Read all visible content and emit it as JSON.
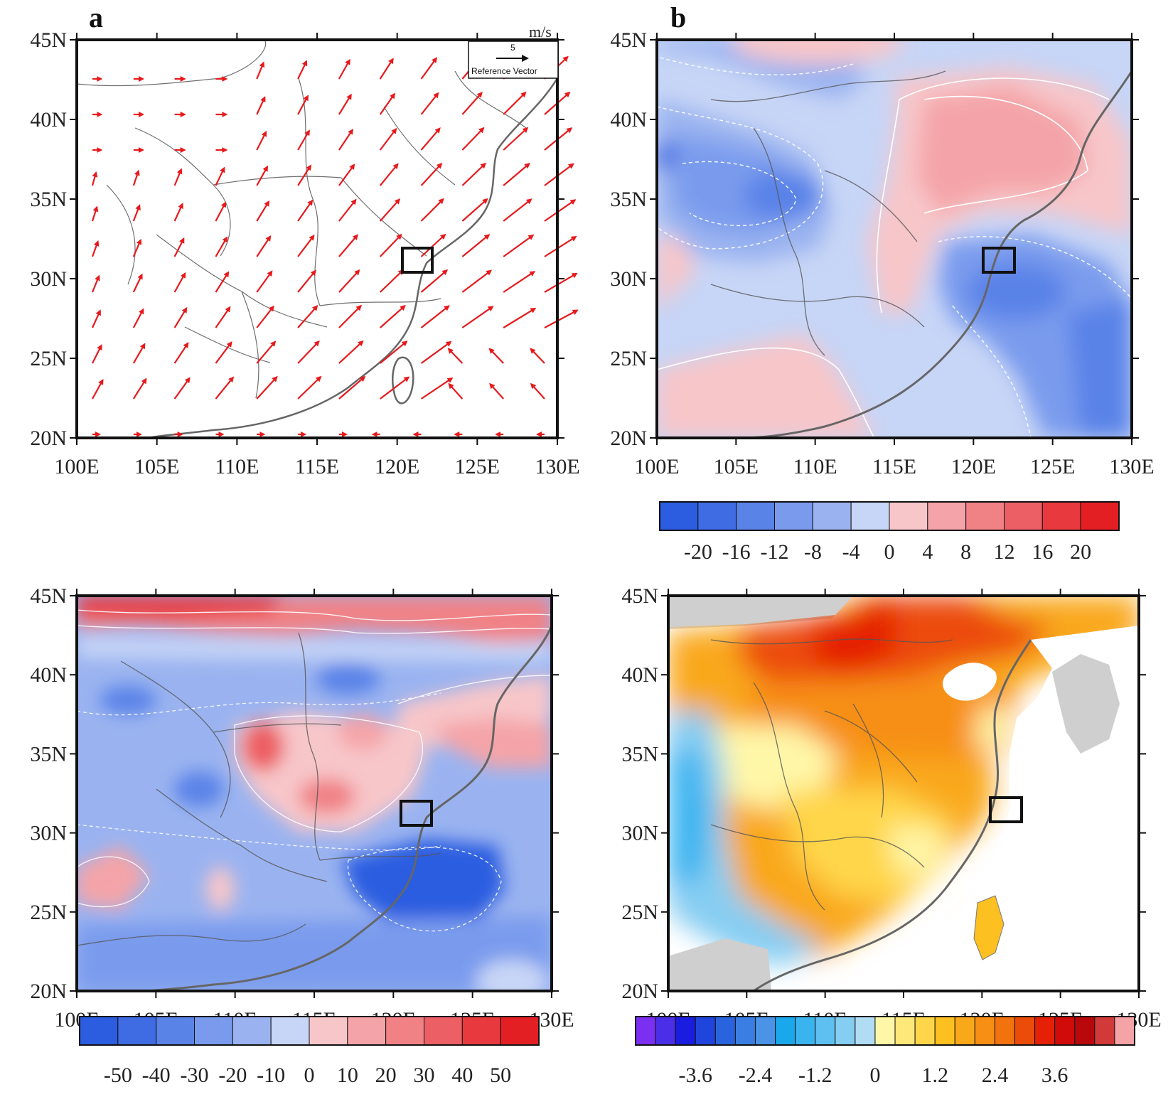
{
  "panels": [
    {
      "label": "a",
      "kind": "vector",
      "units": "m/s",
      "reference_vector": {
        "magnitude": "5",
        "label": "Reference Vector"
      },
      "lat_ticks": [
        "45N",
        "40N",
        "35N",
        "30N",
        "25N",
        "20N"
      ],
      "lon_ticks": [
        "100E",
        "105E",
        "110E",
        "115E",
        "120E",
        "125E",
        "130E"
      ],
      "colors": {
        "vector": "#e8191c"
      }
    },
    {
      "label": "b",
      "kind": "filled-contour",
      "lat_ticks": [
        "45N",
        "40N",
        "35N",
        "30N",
        "25N",
        "20N"
      ],
      "lon_ticks": [
        "100E",
        "105E",
        "110E",
        "115E",
        "120E",
        "125E",
        "130E"
      ],
      "colorbar": {
        "labels": [
          "-20",
          "-16",
          "-12",
          "-8",
          "-4",
          "0",
          "4",
          "8",
          "12",
          "16",
          "20"
        ],
        "colors": [
          "#2c5de0",
          "#3f6be3",
          "#5a83e8",
          "#7a9bed",
          "#9ab3f0",
          "#c7d5f6",
          "#f7c6c9",
          "#f4a4a8",
          "#f08286",
          "#ec5f64",
          "#e8393e",
          "#e41f24"
        ]
      }
    },
    {
      "label": "",
      "kind": "filled-contour",
      "lat_ticks": [
        "45N",
        "40N",
        "35N",
        "30N",
        "25N",
        "20N"
      ],
      "lon_ticks": [
        "100E",
        "105E",
        "110E",
        "115E",
        "120E",
        "125E",
        "130E"
      ],
      "colorbar": {
        "labels": [
          "-50",
          "-40",
          "-30",
          "-20",
          "-10",
          "0",
          "10",
          "20",
          "30",
          "40",
          "50"
        ],
        "colors": [
          "#2c5de0",
          "#3f6be3",
          "#5a83e8",
          "#7a9bed",
          "#9ab3f0",
          "#c7d5f6",
          "#f7c6c9",
          "#f4a4a8",
          "#f08286",
          "#ec5f64",
          "#e8393e",
          "#e41f24"
        ]
      }
    },
    {
      "label": "",
      "kind": "filled-contour",
      "lat_ticks": [
        "45N",
        "40N",
        "35N",
        "30N",
        "25N",
        "20N"
      ],
      "lon_ticks": [
        "100E",
        "105E",
        "110E",
        "115E",
        "120E",
        "125E",
        "130E"
      ],
      "colorbar": {
        "labels": [
          "-3.6",
          "-2.4",
          "-1.2",
          "0",
          "1.2",
          "2.4",
          "3.6"
        ],
        "colors": [
          "#7b2ff0",
          "#4b2fe8",
          "#1a1de0",
          "#1f45dc",
          "#2a63de",
          "#3a7ee2",
          "#4a93e6",
          "#1aa8ec",
          "#3ab4ef",
          "#5ec0f0",
          "#86cdf2",
          "#b0dcf4",
          "#fff7a8",
          "#ffe87a",
          "#ffd64a",
          "#fcc020",
          "#f9a81a",
          "#f78f14",
          "#f2720e",
          "#ec4c0a",
          "#e52006",
          "#d10a0a",
          "#b8080c",
          "#d23a3a",
          "#f4a3a6"
        ]
      }
    }
  ],
  "study_box": {
    "lon": [
      120.5,
      122.2
    ],
    "lat": [
      30.6,
      32.0
    ]
  }
}
